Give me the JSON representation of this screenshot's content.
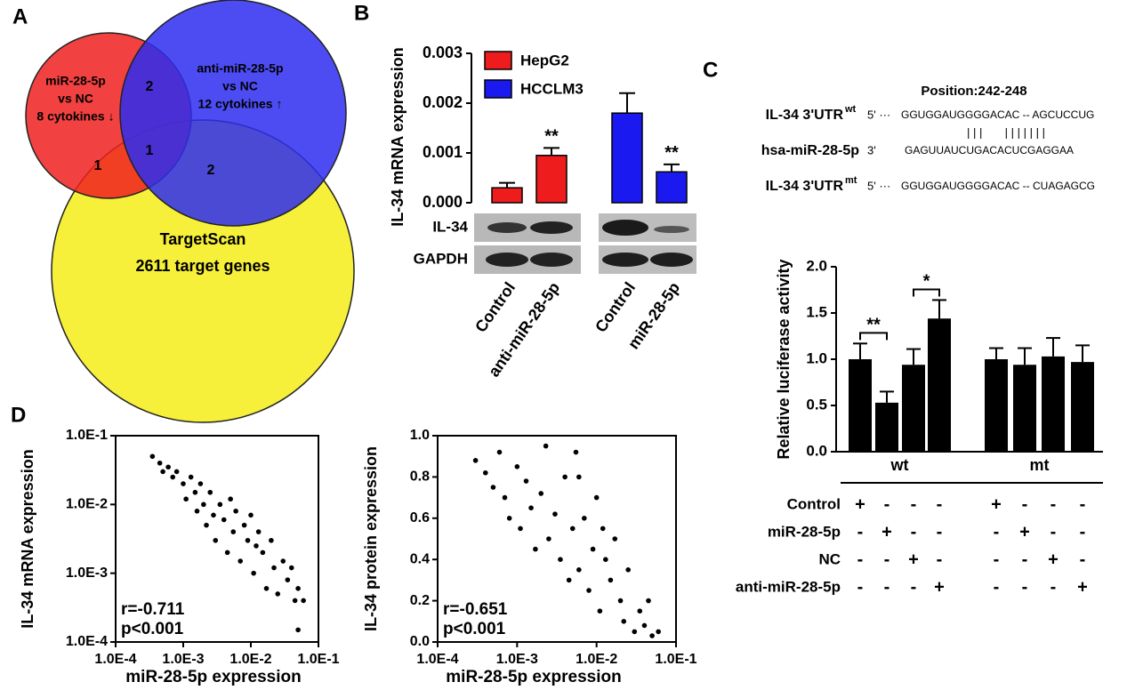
{
  "panels": [
    "A",
    "B",
    "C",
    "D"
  ],
  "venn": {
    "sets": [
      {
        "lines": [
          "miR-28-5p",
          "vs NC",
          "8 cytokines ↓"
        ],
        "color": "#ee2020"
      },
      {
        "lines": [
          "anti-miR-28-5p",
          "vs NC",
          "12 cytokines ↑"
        ],
        "color": "#2d2df0"
      },
      {
        "lines": [
          "TargetScan",
          "2611 target genes"
        ],
        "color": "#f6f03a"
      }
    ],
    "regions": [
      2,
      1,
      1,
      2
    ]
  },
  "blot": {
    "labels": [
      "IL-34",
      "GAPDH"
    ]
  },
  "sequences": {
    "position": "Position:242-248",
    "rows": [
      {
        "label": "IL-34 3'UTR",
        "superscript": "wt",
        "strand": "5' ···",
        "sequence": "GGUGGAUGGGGACAC -- AGCUCCUG"
      },
      {
        "label": "hsa-miR-28-5p",
        "strand": "3'",
        "sequence": "GAGUUAUCUGACACUCGAGGAA"
      },
      {
        "label": "IL-34 3'UTR",
        "superscript": "mt",
        "strand": "5' ···",
        "sequence": "GGUGGAUGGGGACAC -- CUAGAGCG"
      }
    ],
    "pairing": "| | |       | | | | | | |"
  },
  "chart_data": [
    {
      "type": "bar",
      "y_label": "IL-34 mRNA expression",
      "categories": [
        "Control",
        "anti-miR-28-5p",
        "Control",
        "miR-28-5p"
      ],
      "series": [
        {
          "name": "HepG2",
          "color": "#ee1c1c",
          "values": [
            0.0003,
            0.00095,
            null,
            null
          ],
          "errors": [
            0.0001,
            0.00015,
            null,
            null
          ]
        },
        {
          "name": "HCCLM3",
          "color": "#1a1af0",
          "values": [
            null,
            null,
            0.0018,
            0.00062
          ],
          "errors": [
            null,
            null,
            0.0004,
            0.00015
          ]
        }
      ],
      "annotations": [
        "**",
        "**"
      ],
      "ylim": [
        0,
        0.003
      ],
      "yticks": [
        {
          "value": 0,
          "label": "0.000"
        },
        {
          "value": 0.001,
          "label": "0.001"
        },
        {
          "value": 0.002,
          "label": "0.002"
        },
        {
          "value": 0.003,
          "label": "0.003"
        }
      ]
    },
    {
      "type": "bar",
      "y_label": "Relative luciferase activity",
      "color": "#000000",
      "groups": [
        {
          "name": "wt",
          "values": [
            1.0,
            0.53,
            0.94,
            1.44
          ],
          "errors": [
            0.17,
            0.12,
            0.17,
            0.2
          ]
        },
        {
          "name": "mt",
          "values": [
            1.0,
            0.94,
            1.03,
            0.97
          ],
          "errors": [
            0.12,
            0.18,
            0.2,
            0.18
          ]
        }
      ],
      "annotations": [
        "**",
        "*"
      ],
      "ylim": [
        0,
        2
      ],
      "yticks": [
        {
          "value": 0,
          "label": "0.0"
        },
        0.5,
        {
          "value": 1,
          "label": "1.0"
        },
        1.5,
        {
          "value": 2,
          "label": "2.0"
        }
      ],
      "treatments": [
        {
          "name": "Control",
          "marks": [
            "+",
            "-",
            "-",
            "-",
            "+",
            "-",
            "-",
            "-"
          ]
        },
        {
          "name": "miR-28-5p",
          "marks": [
            "-",
            "+",
            "-",
            "-",
            "-",
            "+",
            "-",
            "-"
          ]
        },
        {
          "name": "NC",
          "marks": [
            "-",
            "-",
            "+",
            "-",
            "-",
            "-",
            "+",
            "-"
          ]
        },
        {
          "name": "anti-miR-28-5p",
          "marks": [
            "-",
            "-",
            "-",
            "+",
            "-",
            "-",
            "-",
            "+"
          ]
        }
      ]
    },
    {
      "type": "scatter",
      "x_label": "miR-28-5p expression",
      "y_label": "IL-34 mRNA expression",
      "annotations": [
        "r=-0.711",
        "p<0.001"
      ],
      "log_x": true,
      "log_y": true,
      "x": [
        0.00035,
        0.00045,
        0.0005,
        0.0006,
        0.0007,
        0.0008,
        0.001,
        0.0011,
        0.0013,
        0.0015,
        0.0016,
        0.0018,
        0.002,
        0.0022,
        0.0025,
        0.0028,
        0.003,
        0.0035,
        0.004,
        0.0045,
        0.005,
        0.0055,
        0.006,
        0.007,
        0.008,
        0.009,
        0.01,
        0.011,
        0.013,
        0.015,
        0.017,
        0.02,
        0.022,
        0.025,
        0.03,
        0.035,
        0.04,
        0.045,
        0.05,
        0.06,
        0.05,
        0.012
      ],
      "values": [
        0.05,
        0.04,
        0.03,
        0.035,
        0.025,
        0.03,
        0.02,
        0.012,
        0.025,
        0.015,
        0.008,
        0.02,
        0.01,
        0.005,
        0.015,
        0.007,
        0.003,
        0.01,
        0.006,
        0.002,
        0.012,
        0.004,
        0.008,
        0.0015,
        0.005,
        0.003,
        0.007,
        0.001,
        0.004,
        0.002,
        0.0006,
        0.003,
        0.0012,
        0.0005,
        0.0015,
        0.0008,
        0.0012,
        0.0004,
        0.0006,
        0.0004,
        0.00015,
        0.0025
      ],
      "xlim": [
        0.0001,
        0.1
      ],
      "ylim": [
        0.0001,
        0.1
      ],
      "xticks": [
        {
          "value": 0.0001,
          "label": "1.0E-4"
        },
        {
          "value": 0.001,
          "label": "1.0E-3"
        },
        {
          "value": 0.01,
          "label": "1.0E-2"
        },
        {
          "value": 0.1,
          "label": "1.0E-1"
        }
      ],
      "yticks": [
        {
          "value": 0.0001,
          "label": "1.0E-4"
        },
        {
          "value": 0.001,
          "label": "1.0E-3"
        },
        {
          "value": 0.01,
          "label": "1.0E-2"
        },
        {
          "value": 0.1,
          "label": "1.0E-1"
        }
      ]
    },
    {
      "type": "scatter",
      "x_label": "miR-28-5p expression",
      "y_label": "IL-34 protein expression",
      "annotations": [
        "r=-0.651",
        "p<0.001"
      ],
      "log_x": true,
      "log_y": false,
      "x": [
        0.0003,
        0.0004,
        0.0005,
        0.0006,
        0.0007,
        0.0008,
        0.001,
        0.0011,
        0.0013,
        0.0015,
        0.0017,
        0.002,
        0.0023,
        0.0025,
        0.003,
        0.0035,
        0.004,
        0.0045,
        0.005,
        0.0055,
        0.006,
        0.007,
        0.008,
        0.009,
        0.01,
        0.011,
        0.013,
        0.015,
        0.017,
        0.02,
        0.022,
        0.025,
        0.03,
        0.035,
        0.04,
        0.045,
        0.05,
        0.06,
        0.012,
        0.006
      ],
      "values": [
        0.88,
        0.82,
        0.75,
        0.92,
        0.7,
        0.6,
        0.85,
        0.55,
        0.78,
        0.65,
        0.45,
        0.72,
        0.95,
        0.5,
        0.62,
        0.4,
        0.8,
        0.3,
        0.55,
        0.92,
        0.35,
        0.6,
        0.25,
        0.45,
        0.7,
        0.15,
        0.4,
        0.3,
        0.5,
        0.2,
        0.1,
        0.35,
        0.05,
        0.15,
        0.08,
        0.2,
        0.03,
        0.05,
        0.55,
        0.8
      ],
      "xlim": [
        0.0001,
        0.1
      ],
      "ylim": [
        0,
        1
      ],
      "xticks": [
        {
          "value": 0.0001,
          "label": "1.0E-4"
        },
        {
          "value": 0.001,
          "label": "1.0E-3"
        },
        {
          "value": 0.01,
          "label": "1.0E-2"
        },
        {
          "value": 0.1,
          "label": "1.0E-1"
        }
      ],
      "yticks": [
        {
          "value": 0,
          "label": "0.0"
        },
        0.2,
        0.4,
        0.6,
        0.8,
        {
          "value": 1,
          "label": "1.0"
        }
      ]
    }
  ]
}
